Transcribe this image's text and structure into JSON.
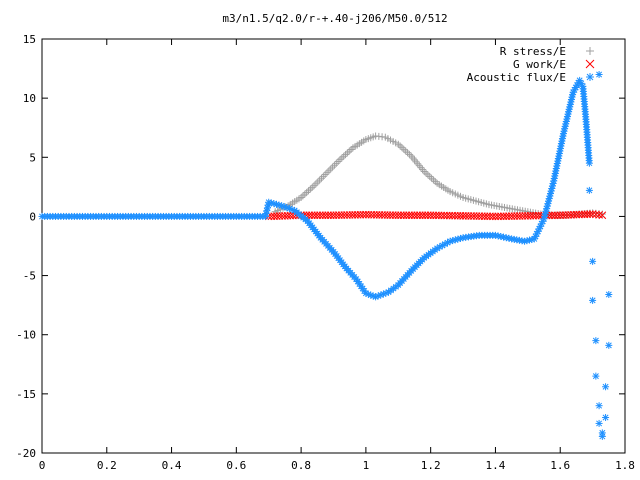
{
  "chart_data": {
    "type": "scatter",
    "title": "m3/n1.5/q2.0/r-+.40-j206/M50.0/512",
    "xlabel": "",
    "ylabel": "",
    "xlim": [
      0,
      1.8
    ],
    "ylim": [
      -20,
      15
    ],
    "x_ticks": [
      "0",
      "0.2",
      "0.4",
      "0.6",
      "0.8",
      "1",
      "1.2",
      "1.4",
      "1.6",
      "1.8"
    ],
    "y_ticks": [
      "15",
      "10",
      "5",
      "0",
      "-5",
      "-10",
      "-15",
      "-20"
    ],
    "grid": false,
    "legend_position": "top-right",
    "series": [
      {
        "name": "R stress/E",
        "marker": "plus",
        "color": "#a0a0a0",
        "points": [
          [
            0.72,
            0.4
          ],
          [
            0.76,
            0.9
          ],
          [
            0.8,
            1.6
          ],
          [
            0.84,
            2.6
          ],
          [
            0.88,
            3.7
          ],
          [
            0.92,
            4.8
          ],
          [
            0.96,
            5.8
          ],
          [
            1.0,
            6.5
          ],
          [
            1.03,
            6.8
          ],
          [
            1.06,
            6.7
          ],
          [
            1.1,
            6.1
          ],
          [
            1.14,
            5.1
          ],
          [
            1.18,
            3.8
          ],
          [
            1.22,
            2.8
          ],
          [
            1.26,
            2.1
          ],
          [
            1.3,
            1.6
          ],
          [
            1.34,
            1.3
          ],
          [
            1.38,
            1.0
          ],
          [
            1.42,
            0.8
          ],
          [
            1.46,
            0.6
          ],
          [
            1.5,
            0.4
          ],
          [
            1.54,
            0.2
          ],
          [
            1.58,
            0.1
          ],
          [
            1.62,
            0.1
          ],
          [
            1.66,
            0.2
          ],
          [
            1.7,
            0.3
          ],
          [
            1.73,
            0.2
          ]
        ]
      },
      {
        "name": "G work/E",
        "marker": "cross",
        "color": "#ff0000",
        "points": [
          [
            0.7,
            0.0
          ],
          [
            0.8,
            0.1
          ],
          [
            0.9,
            0.1
          ],
          [
            1.0,
            0.15
          ],
          [
            1.1,
            0.1
          ],
          [
            1.2,
            0.1
          ],
          [
            1.3,
            0.05
          ],
          [
            1.4,
            0.0
          ],
          [
            1.5,
            0.05
          ],
          [
            1.6,
            0.1
          ],
          [
            1.7,
            0.2
          ],
          [
            1.73,
            0.1
          ]
        ]
      },
      {
        "name": "Acoustic flux/E",
        "marker": "star",
        "color": "#1e90ff",
        "points": [
          [
            0.0,
            0.0
          ],
          [
            0.1,
            0.0
          ],
          [
            0.2,
            0.0
          ],
          [
            0.3,
            0.0
          ],
          [
            0.4,
            0.0
          ],
          [
            0.5,
            0.0
          ],
          [
            0.6,
            0.0
          ],
          [
            0.69,
            0.0
          ],
          [
            0.7,
            1.2
          ],
          [
            0.74,
            0.9
          ],
          [
            0.78,
            0.5
          ],
          [
            0.82,
            -0.4
          ],
          [
            0.86,
            -1.8
          ],
          [
            0.9,
            -3.0
          ],
          [
            0.94,
            -4.4
          ],
          [
            0.97,
            -5.3
          ],
          [
            1.0,
            -6.5
          ],
          [
            1.03,
            -6.8
          ],
          [
            1.07,
            -6.4
          ],
          [
            1.1,
            -5.8
          ],
          [
            1.14,
            -4.6
          ],
          [
            1.18,
            -3.5
          ],
          [
            1.22,
            -2.7
          ],
          [
            1.26,
            -2.1
          ],
          [
            1.3,
            -1.8
          ],
          [
            1.35,
            -1.6
          ],
          [
            1.4,
            -1.6
          ],
          [
            1.45,
            -1.9
          ],
          [
            1.49,
            -2.1
          ],
          [
            1.52,
            -1.9
          ],
          [
            1.55,
            -0.2
          ],
          [
            1.58,
            3.0
          ],
          [
            1.61,
            7.0
          ],
          [
            1.64,
            10.5
          ],
          [
            1.66,
            11.5
          ],
          [
            1.67,
            11.0
          ],
          [
            1.68,
            8.0
          ],
          [
            1.69,
            4.5
          ],
          [
            1.69,
            2.2
          ],
          [
            1.7,
            -3.8
          ],
          [
            1.7,
            -7.1
          ],
          [
            1.71,
            -10.5
          ],
          [
            1.71,
            -13.5
          ],
          [
            1.72,
            -16.0
          ],
          [
            1.72,
            -17.5
          ],
          [
            1.73,
            -18.3
          ],
          [
            1.73,
            -18.6
          ],
          [
            1.74,
            -17.0
          ],
          [
            1.74,
            -14.4
          ],
          [
            1.75,
            -10.9
          ],
          [
            1.75,
            -6.6
          ],
          [
            1.72,
            12.0
          ]
        ]
      }
    ]
  }
}
